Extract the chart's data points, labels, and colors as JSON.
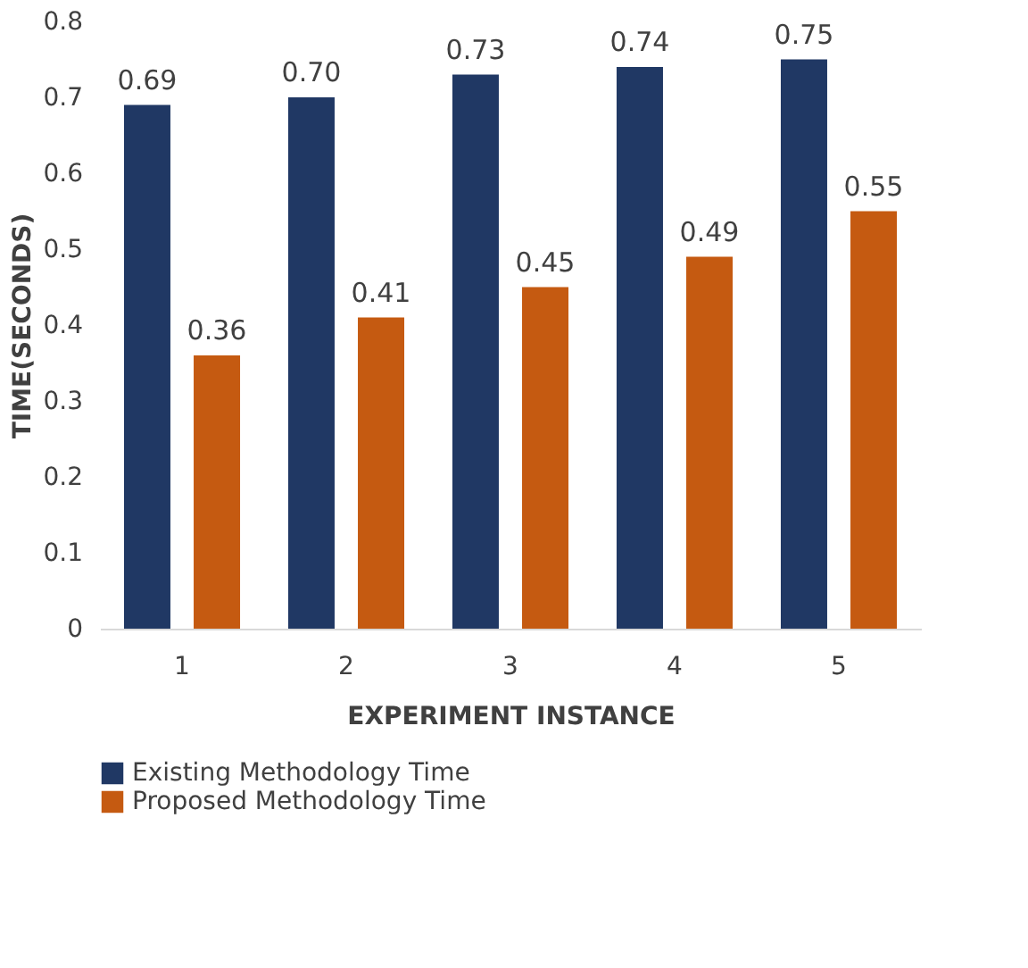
{
  "chart_data": {
    "type": "bar",
    "xlabel": "EXPERIMENT INSTANCE",
    "ylabel": "TIME(SECONDS)",
    "categories": [
      "1",
      "2",
      "3",
      "4",
      "5"
    ],
    "series": [
      {
        "name": "Existing Methodology  Time",
        "color": "#203864",
        "values": [
          0.69,
          0.7,
          0.73,
          0.74,
          0.75
        ],
        "value_labels": [
          "0.69",
          "0.70",
          "0.73",
          "0.74",
          "0.75"
        ]
      },
      {
        "name": "Proposed Methodology  Time",
        "color": "#c55a11",
        "values": [
          0.36,
          0.41,
          0.45,
          0.49,
          0.55
        ],
        "value_labels": [
          "0.36",
          "0.41",
          "0.45",
          "0.49",
          "0.55"
        ]
      }
    ],
    "ylim": [
      0,
      0.8
    ],
    "yticks": [
      0,
      0.1,
      0.2,
      0.3,
      0.4,
      0.5,
      0.6,
      0.7,
      0.8
    ],
    "grid": false,
    "legend": "bottom"
  }
}
